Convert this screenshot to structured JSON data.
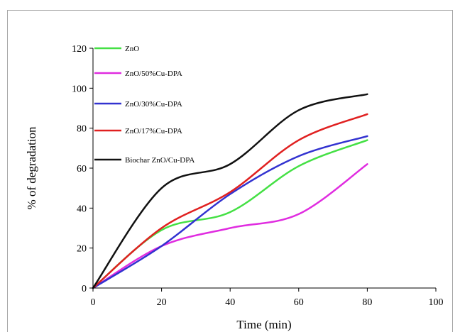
{
  "chart_data": {
    "type": "line",
    "title": "",
    "xlabel": "Time (min)",
    "ylabel": "% of degradation",
    "xlim": [
      0,
      100
    ],
    "ylim": [
      0,
      120
    ],
    "xticks": [
      0,
      20,
      40,
      60,
      80,
      100
    ],
    "yticks": [
      0,
      20,
      40,
      60,
      80,
      100,
      120
    ],
    "grid": false,
    "legend_position": "top-left",
    "series": [
      {
        "name": "ZnO",
        "color": "#44e044",
        "x": [
          0,
          20,
          40,
          60,
          80
        ],
        "y": [
          0,
          29,
          38,
          61,
          74
        ]
      },
      {
        "name": "ZnO/50%Cu-DPA",
        "color": "#e02ce0",
        "x": [
          0,
          20,
          40,
          60,
          80
        ],
        "y": [
          0,
          21,
          30,
          37,
          62
        ]
      },
      {
        "name": "ZnO/30%Cu-DPA",
        "color": "#3232d0",
        "x": [
          0,
          20,
          40,
          60,
          80
        ],
        "y": [
          0,
          21,
          47,
          66,
          76
        ]
      },
      {
        "name": "ZnO/17%Cu-DPA",
        "color": "#e02020",
        "x": [
          0,
          20,
          40,
          60,
          80
        ],
        "y": [
          0,
          30,
          48,
          74,
          87
        ]
      },
      {
        "name": "Biochar ZnO/Cu-DPA",
        "color": "#111111",
        "x": [
          0,
          20,
          40,
          60,
          80
        ],
        "y": [
          0,
          50,
          62,
          89,
          97
        ]
      }
    ]
  }
}
